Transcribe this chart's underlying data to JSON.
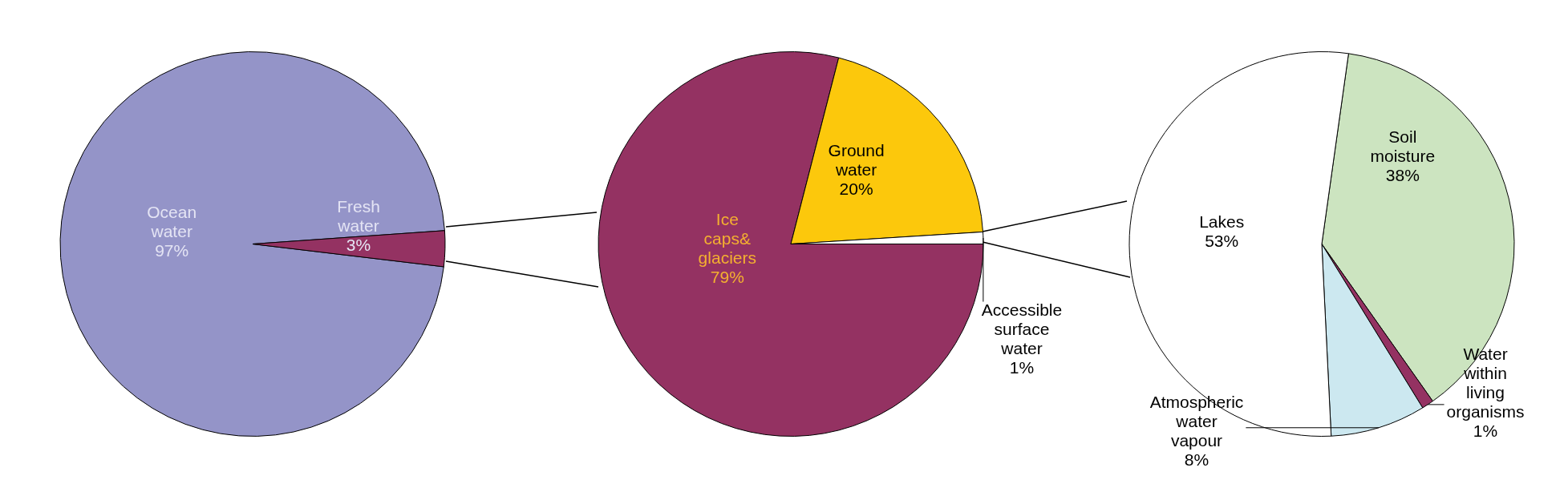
{
  "chart_data": [
    {
      "type": "pie",
      "categories": [
        "Ocean water",
        "Fresh water"
      ],
      "values": [
        97,
        3
      ],
      "colors": [
        "#9494c8",
        "#943262"
      ],
      "value_labels": [
        "97%",
        "3%"
      ]
    },
    {
      "type": "pie",
      "categories": [
        "Ice caps& glaciers",
        "Ground water",
        "Accessible surface water"
      ],
      "values": [
        79,
        20,
        1
      ],
      "colors": [
        "#943262",
        "#fcc80c",
        "#ffffff"
      ],
      "value_labels": [
        "79%",
        "20%",
        "1%"
      ]
    },
    {
      "type": "pie",
      "categories": [
        "Soil moisture",
        "Water within living organisms",
        "Atmospheric water vapour",
        "Lakes"
      ],
      "values": [
        38,
        1,
        8,
        53
      ],
      "colors": [
        "#cce4c0",
        "#943262",
        "#cce8f0",
        "#ffffff"
      ],
      "value_labels": [
        "38%",
        "1%",
        "8%",
        "53%"
      ]
    }
  ]
}
